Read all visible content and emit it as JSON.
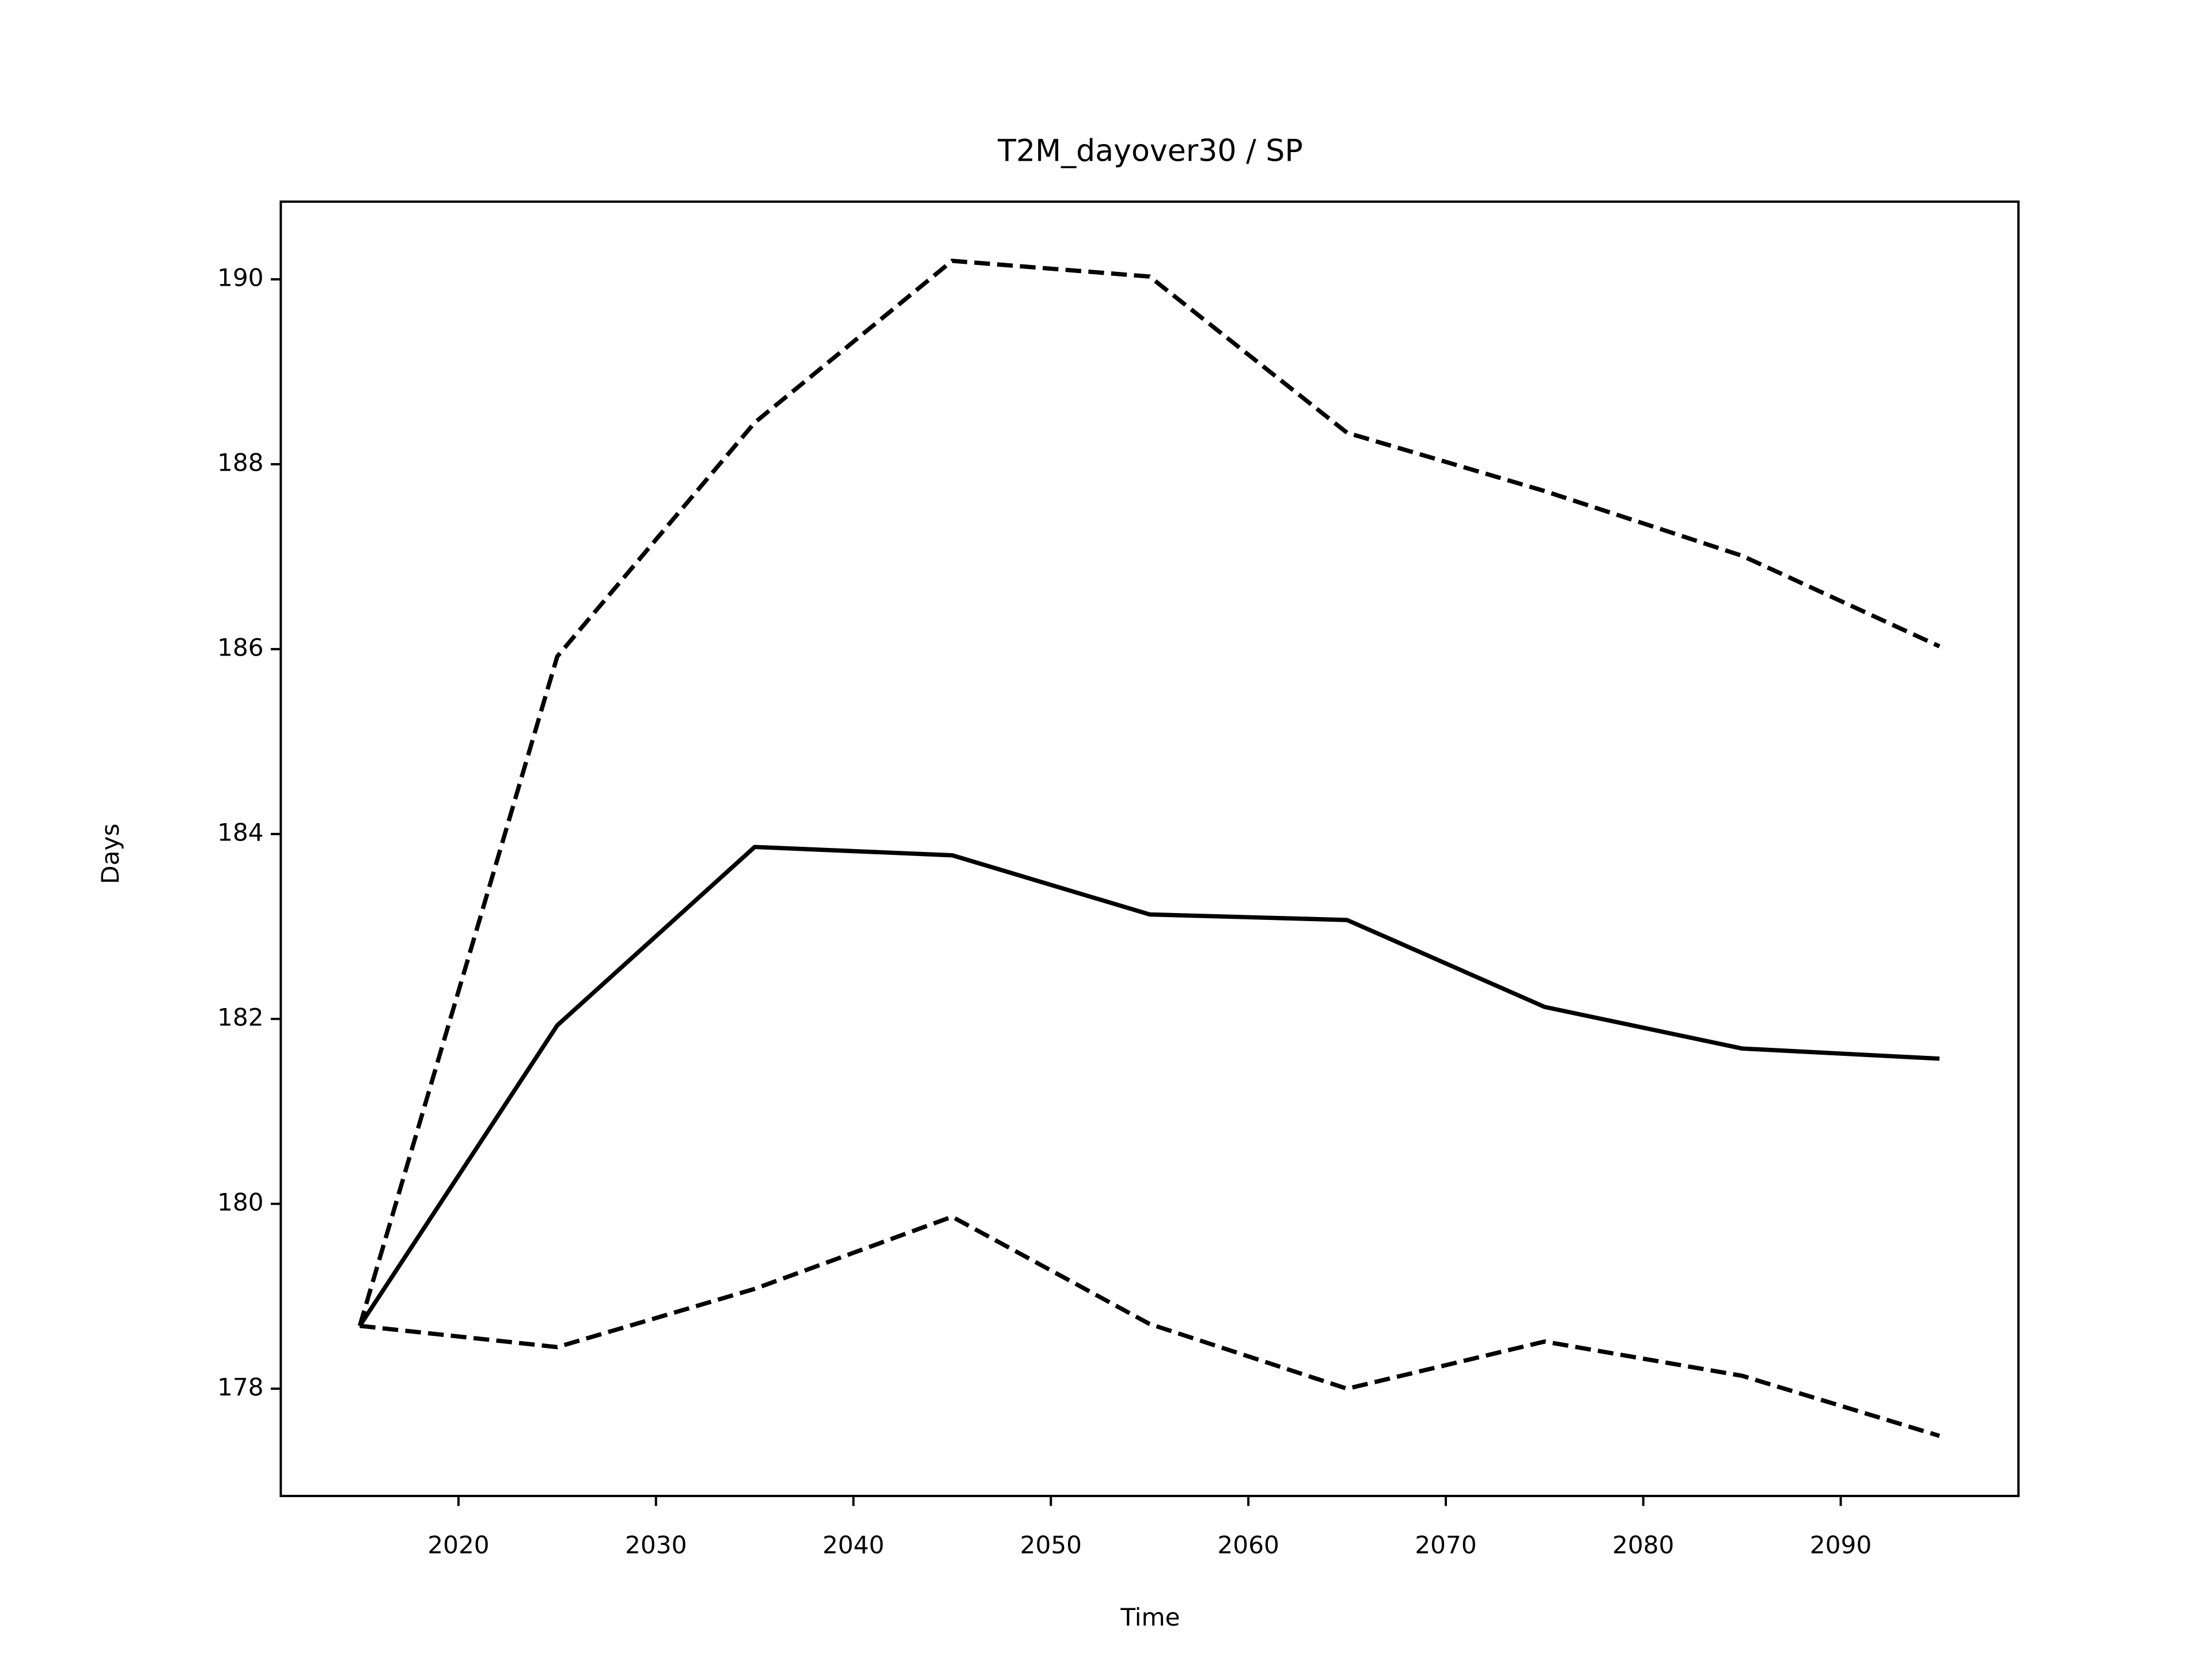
{
  "chart_data": {
    "type": "line",
    "title": "T2M_dayover30 / SP",
    "xlabel": "Time",
    "ylabel": "Days",
    "x": [
      2015,
      2025,
      2035,
      2045,
      2055,
      2065,
      2075,
      2085,
      2095
    ],
    "series": [
      {
        "color": "#000000",
        "linestyle": "solid",
        "values": [
          178.68,
          181.93,
          183.86,
          183.77,
          183.13,
          183.07,
          182.13,
          181.68,
          181.57
        ]
      },
      {
        "color": "#000000",
        "linestyle": "dashed",
        "values": [
          178.68,
          185.92,
          188.45,
          190.2,
          190.03,
          188.34,
          187.71,
          187.01,
          186.03
        ]
      },
      {
        "color": "#000000",
        "linestyle": "dashed",
        "values": [
          178.68,
          178.45,
          179.08,
          179.86,
          178.7,
          178.0,
          178.51,
          178.14,
          177.49
        ]
      }
    ],
    "xlim": [
      2011,
      2099
    ],
    "xticks": [
      2020,
      2030,
      2040,
      2050,
      2060,
      2070,
      2080,
      2090
    ],
    "ylim": [
      176.84,
      190.84
    ],
    "yticks": [
      178,
      180,
      182,
      184,
      186,
      188,
      190
    ],
    "grid": false
  }
}
